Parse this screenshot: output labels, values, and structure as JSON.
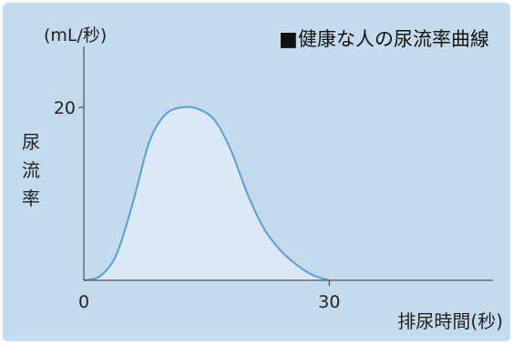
{
  "chart_data": {
    "type": "area",
    "title": "健康な人の尿流率曲線",
    "title_marker": "■",
    "ylabel": "尿流率",
    "yunit": "(mL/秒)",
    "xlabel": "排尿時間(秒)",
    "x_ticks": [
      {
        "value": 0,
        "label": "0"
      },
      {
        "value": 30,
        "label": "30"
      }
    ],
    "y_ticks": [
      {
        "value": 20,
        "label": "20"
      }
    ],
    "xlim": [
      0,
      50
    ],
    "ylim": [
      0,
      28
    ],
    "grid": false,
    "legend": "none",
    "series": [
      {
        "x": [
          0,
          2,
          4,
          6,
          8,
          10,
          12,
          14,
          16,
          18,
          20,
          22,
          24,
          26,
          28,
          30
        ],
        "y": [
          0,
          0.5,
          3,
          9,
          16,
          19.2,
          20,
          19.8,
          18.5,
          15,
          10,
          6,
          3.5,
          1.8,
          0.6,
          0
        ]
      }
    ],
    "colors": {
      "background": "#c3dbed",
      "area_fill": "#dbe9f6",
      "line": "#5a9ed3",
      "axis": "#555555"
    }
  }
}
